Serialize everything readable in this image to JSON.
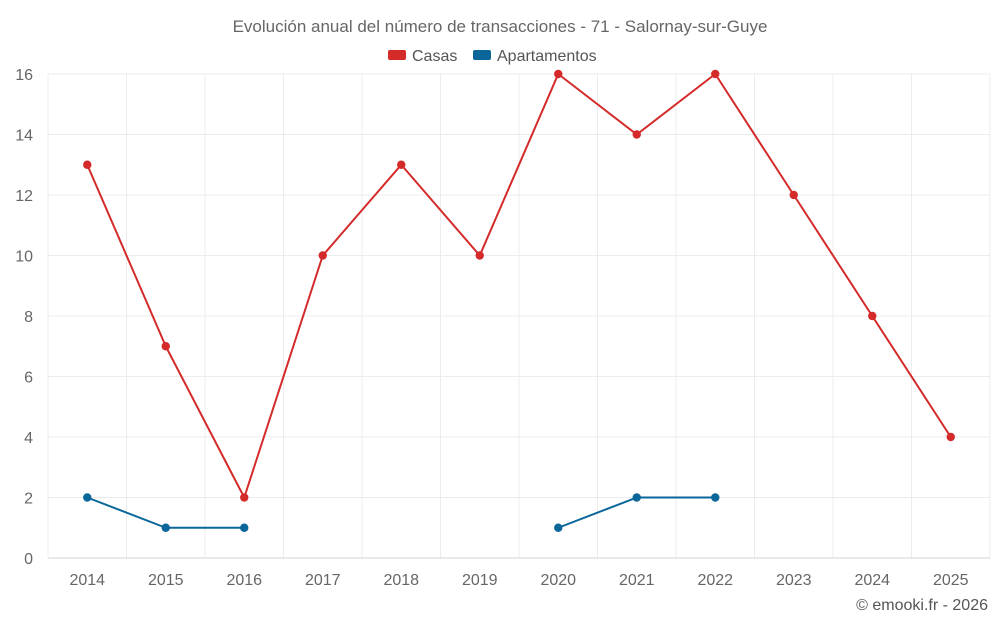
{
  "chart_data": {
    "type": "line",
    "title": "Evolución anual del número de transacciones - 71 - Salornay-sur-Guye",
    "categories": [
      "2014",
      "2015",
      "2016",
      "2017",
      "2018",
      "2019",
      "2020",
      "2021",
      "2022",
      "2023",
      "2024",
      "2025"
    ],
    "series": [
      {
        "name": "Casas",
        "color": "#d42a2a",
        "values": [
          13,
          7,
          2,
          10,
          13,
          10,
          16,
          14,
          16,
          12,
          8,
          4
        ]
      },
      {
        "name": "Apartamentos",
        "color": "#0b6699",
        "values": [
          2,
          1,
          1,
          null,
          null,
          null,
          1,
          2,
          2,
          null,
          null,
          null
        ]
      }
    ],
    "ylim": [
      0,
      16
    ],
    "yticks": [
      0,
      2,
      4,
      6,
      8,
      10,
      12,
      14,
      16
    ],
    "xlabel": "",
    "ylabel": "",
    "grid": true,
    "legend_position": "top-center"
  },
  "credit": "© emooki.fr - 2026"
}
